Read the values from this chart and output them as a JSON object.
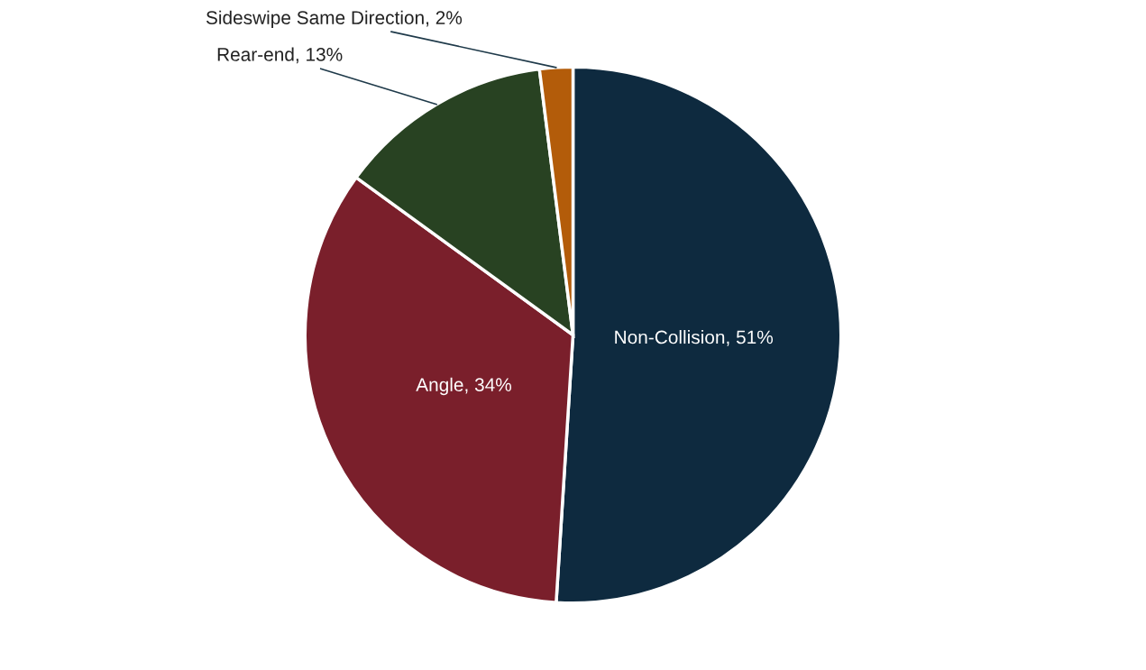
{
  "chart_data": {
    "type": "pie",
    "categories": [
      "Non-Collision",
      "Angle",
      "Rear-end",
      "Sideswipe Same Direction"
    ],
    "values": [
      51,
      34,
      13,
      2
    ],
    "value_labels": [
      "51%",
      "34%",
      "13%",
      "2%"
    ],
    "colors": [
      "#0e2a3f",
      "#7a1f2b",
      "#284222",
      "#b35c0a"
    ],
    "legend": false
  }
}
